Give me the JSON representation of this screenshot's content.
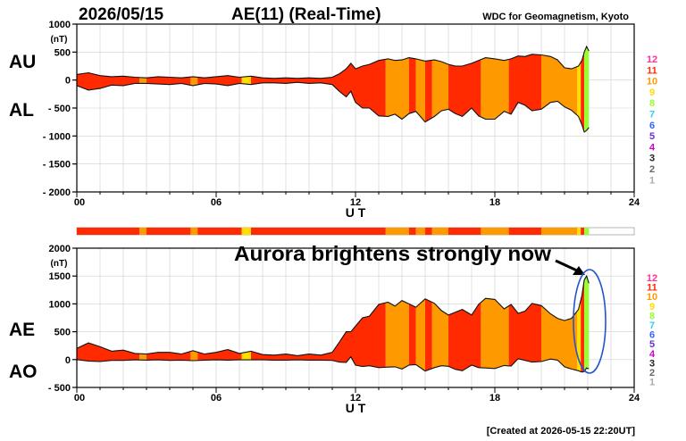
{
  "header": {
    "date": "2026/05/15",
    "title": "AE(11) (Real-Time)",
    "credit": "WDC for Geomagnetism, Kyoto"
  },
  "footer": {
    "created": "[Created at 2026-05-15 22:20UT]"
  },
  "annotation": {
    "text": "Aurora brightens strongly now"
  },
  "station_scale": {
    "labels": [
      "12",
      "11",
      "10",
      "9",
      "8",
      "7",
      "6",
      "5",
      "4",
      "3",
      "2",
      "1"
    ],
    "colors": [
      "#ff3399",
      "#ff2a00",
      "#ff9900",
      "#ffdd00",
      "#99ff33",
      "#33ccee",
      "#3366ff",
      "#6633cc",
      "#cc00cc",
      "#222222",
      "#666666",
      "#aaaaaa"
    ]
  },
  "colors": {
    "fill_11": "#ff2a00",
    "fill_10": "#ff9900",
    "fill_9": "#ffdd00",
    "fill_8": "#99ff33",
    "annotation_ring": "#2255cc"
  },
  "chart_data": [
    {
      "type": "area",
      "series_labels": [
        "AU",
        "AL"
      ],
      "ylabel": "(nT)",
      "xlabel": "U T",
      "ylim": [
        -2000,
        1000
      ],
      "yticks": [
        1000,
        500,
        0,
        -500,
        -1000,
        -1500,
        -2000
      ],
      "ytick_labels": [
        "1000",
        "500",
        "0",
        "- 500",
        "- 1000",
        "- 1500",
        "- 2000"
      ],
      "xlim": [
        0,
        24
      ],
      "xticks": [
        0,
        6,
        12,
        18,
        24
      ],
      "xtick_labels": [
        "00",
        "06",
        "12",
        "18",
        "24"
      ],
      "grid": true,
      "x": [
        0,
        0.5,
        1,
        1.5,
        2,
        2.5,
        3,
        3.5,
        4,
        4.5,
        5,
        5.5,
        6,
        6.5,
        7,
        7.5,
        8,
        8.5,
        9,
        9.5,
        10,
        10.5,
        11,
        11.3,
        11.6,
        11.8,
        12,
        12.3,
        12.6,
        13,
        13.4,
        13.7,
        14,
        14.3,
        14.6,
        15,
        15.4,
        15.7,
        16,
        16.3,
        16.6,
        17,
        17.3,
        17.6,
        18,
        18.4,
        18.7,
        19,
        19.3,
        19.6,
        20,
        20.4,
        20.7,
        21,
        21.3,
        21.6,
        21.75,
        21.85,
        21.95,
        22.05
      ],
      "AU": [
        100,
        130,
        80,
        60,
        70,
        50,
        40,
        60,
        50,
        40,
        60,
        40,
        60,
        80,
        50,
        70,
        40,
        30,
        40,
        30,
        40,
        30,
        50,
        110,
        200,
        300,
        200,
        250,
        280,
        350,
        380,
        350,
        360,
        400,
        380,
        340,
        360,
        330,
        280,
        250,
        250,
        300,
        350,
        400,
        380,
        350,
        380,
        430,
        420,
        460,
        450,
        420,
        360,
        220,
        200,
        250,
        350,
        500,
        600,
        520
      ],
      "AL": [
        -100,
        -180,
        -150,
        -90,
        -100,
        -60,
        -60,
        -70,
        -80,
        -60,
        -100,
        -60,
        -70,
        -100,
        -60,
        -80,
        -50,
        -50,
        -60,
        -40,
        -60,
        -50,
        -80,
        -200,
        -300,
        -200,
        -400,
        -500,
        -500,
        -640,
        -650,
        -610,
        -700,
        -600,
        -560,
        -750,
        -650,
        -550,
        -520,
        -600,
        -650,
        -500,
        -640,
        -700,
        -700,
        -560,
        -610,
        -400,
        -450,
        -550,
        -520,
        -400,
        -380,
        -480,
        -540,
        -650,
        -800,
        -930,
        -900,
        -850
      ],
      "fill_levels": [
        {
          "from": 0,
          "to": 2.7,
          "level": 11
        },
        {
          "from": 2.7,
          "to": 3.0,
          "level": 10
        },
        {
          "from": 3.0,
          "to": 4.9,
          "level": 11
        },
        {
          "from": 4.9,
          "to": 5.2,
          "level": 10
        },
        {
          "from": 5.2,
          "to": 7.1,
          "level": 11
        },
        {
          "from": 7.1,
          "to": 7.5,
          "level": 9
        },
        {
          "from": 7.5,
          "to": 13.3,
          "level": 11
        },
        {
          "from": 13.3,
          "to": 14.3,
          "level": 10
        },
        {
          "from": 14.3,
          "to": 14.6,
          "level": 11
        },
        {
          "from": 14.6,
          "to": 15.0,
          "level": 10
        },
        {
          "from": 15.0,
          "to": 15.3,
          "level": 11
        },
        {
          "from": 15.3,
          "to": 16.0,
          "level": 10
        },
        {
          "from": 16.0,
          "to": 17.4,
          "level": 11
        },
        {
          "from": 17.4,
          "to": 18.6,
          "level": 10
        },
        {
          "from": 18.6,
          "to": 20.0,
          "level": 11
        },
        {
          "from": 20.0,
          "to": 21.55,
          "level": 10
        },
        {
          "from": 21.55,
          "to": 21.7,
          "level": 9
        },
        {
          "from": 21.7,
          "to": 21.85,
          "level": 11
        },
        {
          "from": 21.85,
          "to": 22.05,
          "level": 8
        }
      ]
    },
    {
      "type": "area",
      "series_labels": [
        "AE",
        "AO"
      ],
      "ylabel": "(nT)",
      "xlabel": "U T",
      "ylim": [
        -500,
        2000
      ],
      "yticks": [
        2000,
        1500,
        1000,
        500,
        0,
        -500
      ],
      "ytick_labels": [
        "2000",
        "1500",
        "1000",
        "500",
        "0",
        "- 500"
      ],
      "xlim": [
        0,
        24
      ],
      "xticks": [
        0,
        6,
        12,
        18,
        24
      ],
      "xtick_labels": [
        "00",
        "06",
        "12",
        "18",
        "24"
      ],
      "grid": true,
      "x": [
        0,
        0.5,
        1,
        1.5,
        2,
        2.5,
        3,
        3.5,
        4,
        4.5,
        5,
        5.5,
        6,
        6.5,
        7,
        7.5,
        8,
        8.5,
        9,
        9.5,
        10,
        10.5,
        11,
        11.3,
        11.6,
        11.8,
        12,
        12.3,
        12.6,
        13,
        13.4,
        13.7,
        14,
        14.3,
        14.6,
        15,
        15.4,
        15.7,
        16,
        16.3,
        16.6,
        17,
        17.3,
        17.6,
        18,
        18.4,
        18.7,
        19,
        19.3,
        19.6,
        20,
        20.4,
        20.7,
        21,
        21.3,
        21.6,
        21.75,
        21.85,
        21.95,
        22.05
      ],
      "AE": [
        200,
        300,
        230,
        150,
        170,
        110,
        100,
        130,
        130,
        100,
        160,
        100,
        130,
        180,
        110,
        150,
        90,
        80,
        100,
        70,
        100,
        80,
        130,
        310,
        500,
        500,
        600,
        750,
        780,
        990,
        1030,
        960,
        1060,
        1000,
        940,
        1090,
        1010,
        880,
        800,
        850,
        900,
        800,
        990,
        1100,
        1080,
        910,
        990,
        830,
        870,
        1010,
        970,
        820,
        740,
        700,
        740,
        900,
        1150,
        1430,
        1500,
        1370
      ],
      "AO": [
        0,
        -25,
        -35,
        -15,
        -15,
        -5,
        -10,
        -5,
        -15,
        -10,
        -20,
        -10,
        -5,
        -10,
        -5,
        -5,
        -5,
        -10,
        -10,
        -5,
        -10,
        -10,
        -15,
        -45,
        -50,
        50,
        -100,
        -125,
        -110,
        -145,
        -135,
        -130,
        -170,
        -100,
        -90,
        -205,
        -145,
        -110,
        -120,
        -175,
        -200,
        -100,
        -145,
        -150,
        -160,
        -105,
        -115,
        15,
        -15,
        -45,
        -35,
        10,
        -10,
        -130,
        -170,
        -200,
        -225,
        -215,
        -150,
        -165
      ],
      "fill_levels": [
        {
          "from": 0,
          "to": 2.7,
          "level": 11
        },
        {
          "from": 2.7,
          "to": 3.0,
          "level": 10
        },
        {
          "from": 3.0,
          "to": 4.9,
          "level": 11
        },
        {
          "from": 4.9,
          "to": 5.2,
          "level": 10
        },
        {
          "from": 5.2,
          "to": 7.1,
          "level": 11
        },
        {
          "from": 7.1,
          "to": 7.5,
          "level": 9
        },
        {
          "from": 7.5,
          "to": 13.3,
          "level": 11
        },
        {
          "from": 13.3,
          "to": 14.3,
          "level": 10
        },
        {
          "from": 14.3,
          "to": 14.6,
          "level": 11
        },
        {
          "from": 14.6,
          "to": 15.0,
          "level": 10
        },
        {
          "from": 15.0,
          "to": 15.3,
          "level": 11
        },
        {
          "from": 15.3,
          "to": 16.0,
          "level": 10
        },
        {
          "from": 16.0,
          "to": 17.4,
          "level": 11
        },
        {
          "from": 17.4,
          "to": 18.6,
          "level": 10
        },
        {
          "from": 18.6,
          "to": 20.0,
          "level": 11
        },
        {
          "from": 20.0,
          "to": 21.55,
          "level": 10
        },
        {
          "from": 21.55,
          "to": 21.7,
          "level": 9
        },
        {
          "from": 21.7,
          "to": 21.85,
          "level": 11
        },
        {
          "from": 21.85,
          "to": 22.05,
          "level": 8
        }
      ]
    }
  ]
}
